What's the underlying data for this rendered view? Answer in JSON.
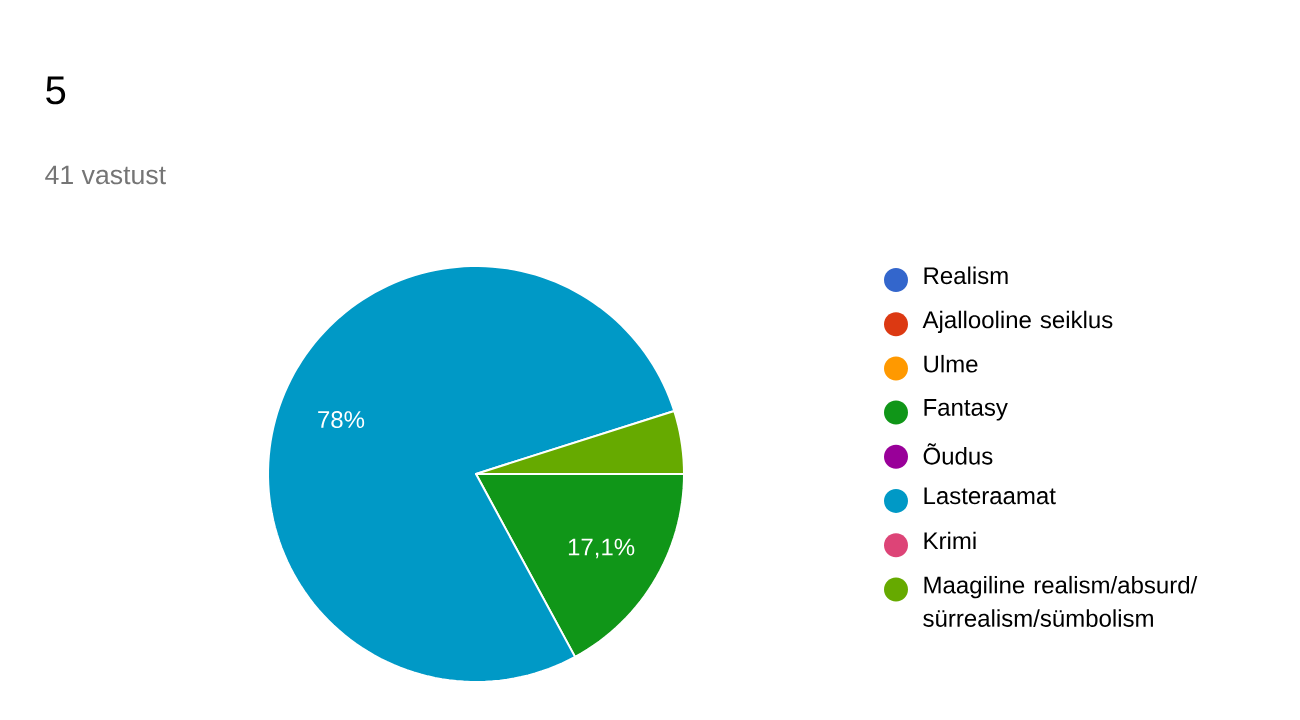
{
  "chart_data": {
    "type": "pie",
    "title": "5",
    "subtitle": "41 vastust",
    "categories": [
      "Realism",
      "Ajallooline seiklus",
      "Ulme",
      "Fantasy",
      "Õudus",
      "Lasteraamat",
      "Krimi",
      "Maagiline realism/absurd/sürrealism/sümbolism"
    ],
    "values": [
      0,
      0,
      0,
      17.1,
      0,
      78,
      0,
      4.9
    ],
    "colors": [
      "#3366cc",
      "#dc3912",
      "#ff9900",
      "#109618",
      "#990099",
      "#0099c6",
      "#dd4477",
      "#66aa00"
    ],
    "value_labels": [
      null,
      null,
      null,
      "17,1%",
      null,
      "78%",
      null,
      null
    ],
    "legend": "right"
  }
}
